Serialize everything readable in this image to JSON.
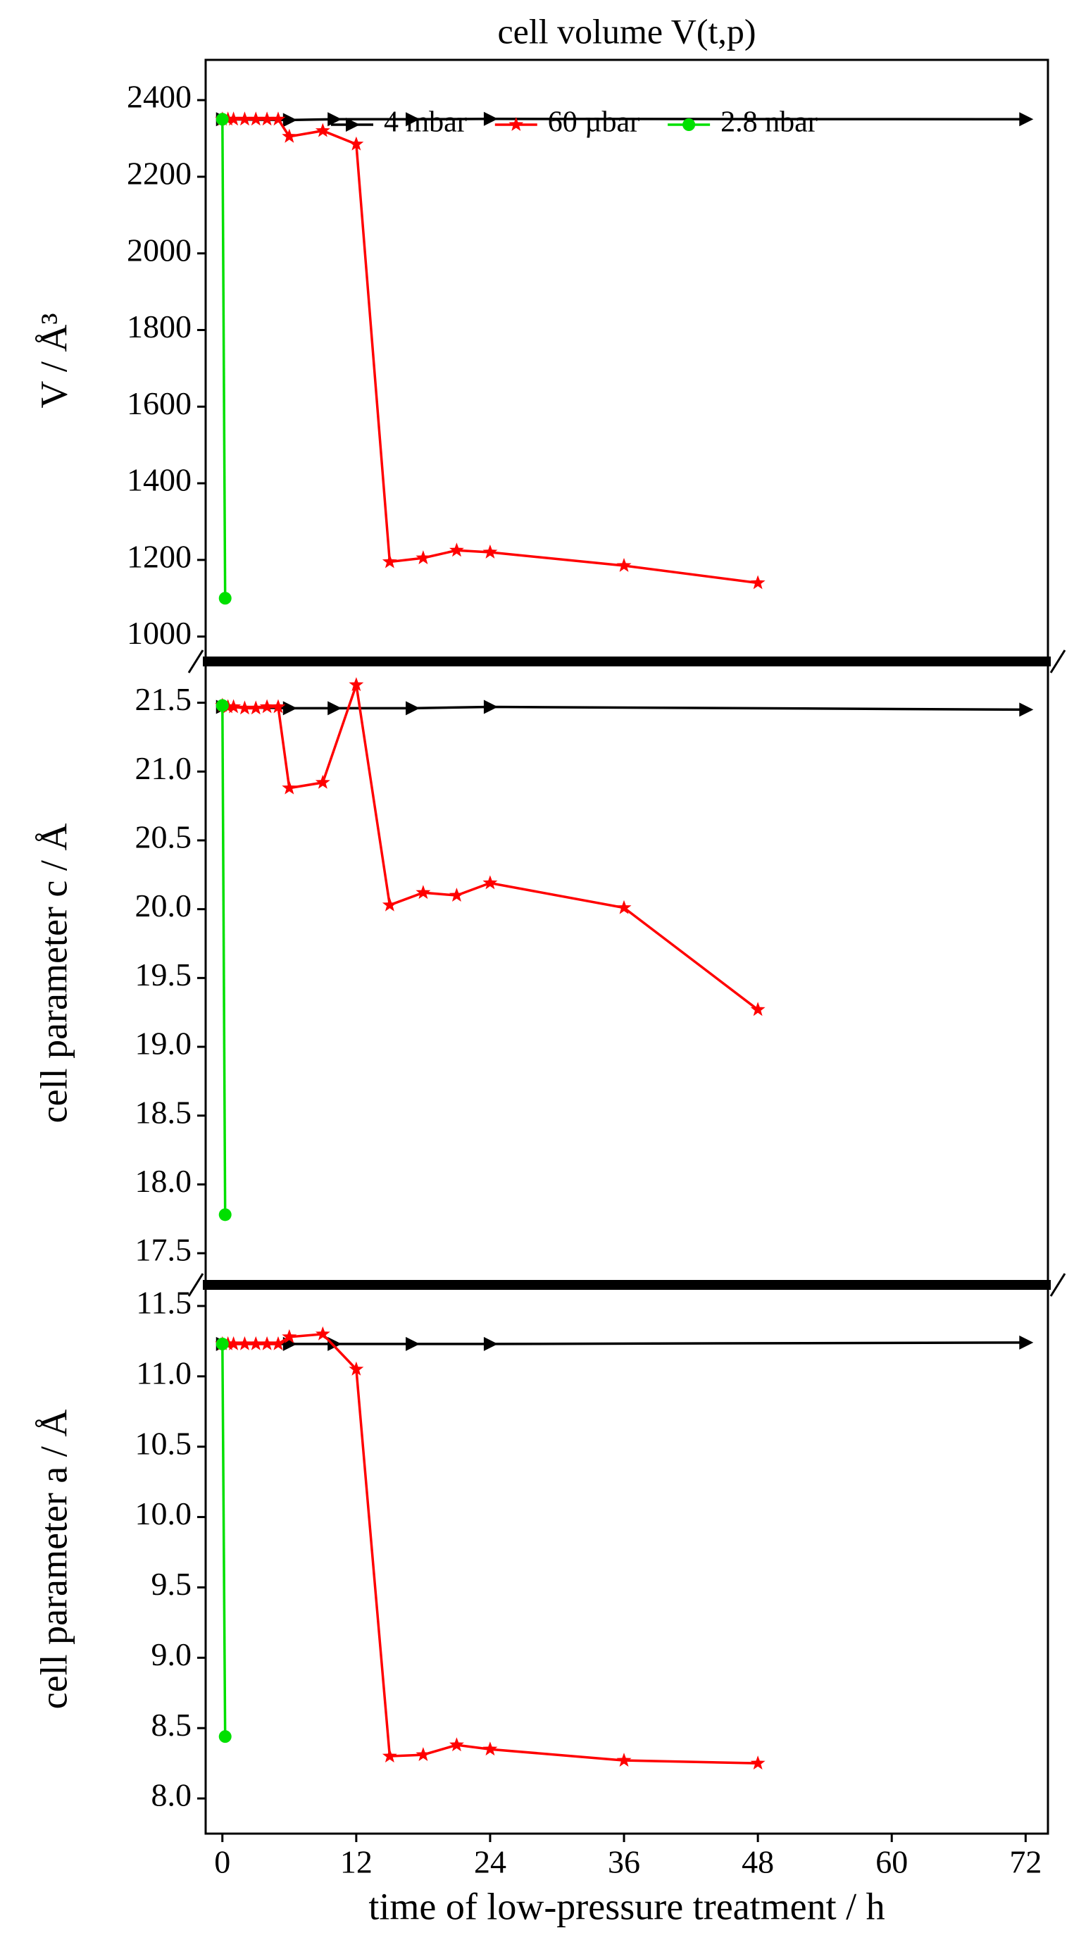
{
  "chart_data": [
    {
      "type": "line",
      "title": "cell volume V(t,p)",
      "ylabel": "V / Å³",
      "xlim": [
        -1.5,
        74
      ],
      "ylim": [
        935,
        2505
      ],
      "yticks": [
        1000,
        1200,
        1400,
        1600,
        1800,
        2000,
        2200,
        2400
      ],
      "legend": "top",
      "series": [
        {
          "name": "4 mbar",
          "color": "#000000",
          "marker": "triangle",
          "x": [
            0,
            6,
            10,
            17,
            24,
            72
          ],
          "values": [
            2350,
            2348,
            2350,
            2350,
            2351,
            2350
          ]
        },
        {
          "name": "60 µbar",
          "color": "#ff0000",
          "marker": "star",
          "x": [
            0,
            0.5,
            1,
            2,
            3,
            4,
            5,
            6,
            9,
            12,
            15,
            18,
            21,
            24,
            36,
            48
          ],
          "values": [
            2350,
            2350,
            2350,
            2350,
            2350,
            2350,
            2350,
            2305,
            2320,
            2285,
            1195,
            1205,
            1225,
            1220,
            1185,
            1140
          ]
        },
        {
          "name": "2.8 nbar",
          "color": "#00e000",
          "marker": "circle",
          "x": [
            0,
            0.25
          ],
          "values": [
            2350,
            1100
          ]
        }
      ]
    },
    {
      "type": "line",
      "ylabel": "cell parameter c / Å",
      "xlim": [
        -1.5,
        74
      ],
      "ylim": [
        17.27,
        21.8
      ],
      "yticks": [
        17.5,
        {
          "value": 18,
          "label": "18.0"
        },
        18.5,
        {
          "value": 19,
          "label": "19.0"
        },
        19.5,
        {
          "value": 20,
          "label": "20.0"
        },
        20.5,
        {
          "value": 21,
          "label": "21.0"
        },
        21.5
      ],
      "series": [
        {
          "color": "#000000",
          "marker": "triangle",
          "x": [
            0,
            6,
            10,
            17,
            24,
            72
          ],
          "values": [
            21.47,
            21.46,
            21.46,
            21.46,
            21.47,
            21.45
          ]
        },
        {
          "color": "#ff0000",
          "marker": "star",
          "x": [
            0,
            0.5,
            1,
            2,
            3,
            4,
            5,
            6,
            9,
            12,
            15,
            18,
            21,
            24,
            36,
            48
          ],
          "values": [
            21.48,
            21.47,
            21.47,
            21.46,
            21.46,
            21.47,
            21.47,
            20.88,
            20.92,
            21.63,
            20.03,
            20.12,
            20.1,
            20.19,
            20.01,
            19.27
          ]
        },
        {
          "color": "#00e000",
          "marker": "circle",
          "x": [
            0,
            0.25
          ],
          "values": [
            21.48,
            17.78
          ]
        }
      ]
    },
    {
      "type": "line",
      "ylabel": "cell parameter a / Å",
      "xlabel": "time of low-pressure treatment / h",
      "xlim": [
        -1.5,
        74
      ],
      "xticks": [
        0,
        12,
        24,
        36,
        48,
        60,
        72
      ],
      "ylim": [
        7.75,
        11.65
      ],
      "yticks": [
        {
          "value": 8,
          "label": "8.0"
        },
        8.5,
        {
          "value": 9,
          "label": "9.0"
        },
        9.5,
        {
          "value": 10,
          "label": "10.0"
        },
        10.5,
        {
          "value": 11,
          "label": "11.0"
        },
        11.5
      ],
      "series": [
        {
          "color": "#000000",
          "marker": "triangle",
          "x": [
            0,
            6,
            10,
            17,
            24,
            72
          ],
          "values": [
            11.23,
            11.23,
            11.23,
            11.23,
            11.23,
            11.24
          ]
        },
        {
          "color": "#ff0000",
          "marker": "star",
          "x": [
            0,
            0.5,
            1,
            2,
            3,
            4,
            5,
            6,
            9,
            12,
            15,
            18,
            21,
            24,
            36,
            48
          ],
          "values": [
            11.23,
            11.23,
            11.23,
            11.23,
            11.23,
            11.23,
            11.23,
            11.28,
            11.3,
            11.05,
            8.3,
            8.31,
            8.38,
            8.35,
            8.27,
            8.25
          ]
        },
        {
          "color": "#00e000",
          "marker": "circle",
          "x": [
            0,
            0.25
          ],
          "values": [
            11.23,
            8.44
          ]
        }
      ]
    }
  ]
}
